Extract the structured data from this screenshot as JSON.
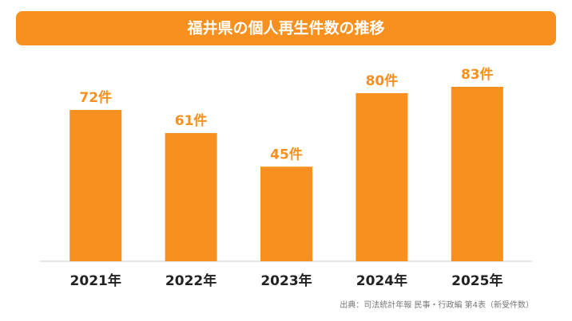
{
  "chart_data": {
    "type": "bar",
    "title": "福井県の個人再生件数の推移",
    "categories": [
      "2021年",
      "2022年",
      "2023年",
      "2024年",
      "2025年"
    ],
    "values": [
      72,
      61,
      45,
      80,
      83
    ],
    "value_labels": [
      "72件",
      "61件",
      "45件",
      "80件",
      "83件"
    ],
    "color": "#f7901e",
    "source": "出典：司法統計年報 民事・行政編 第4表（新受件数）"
  }
}
